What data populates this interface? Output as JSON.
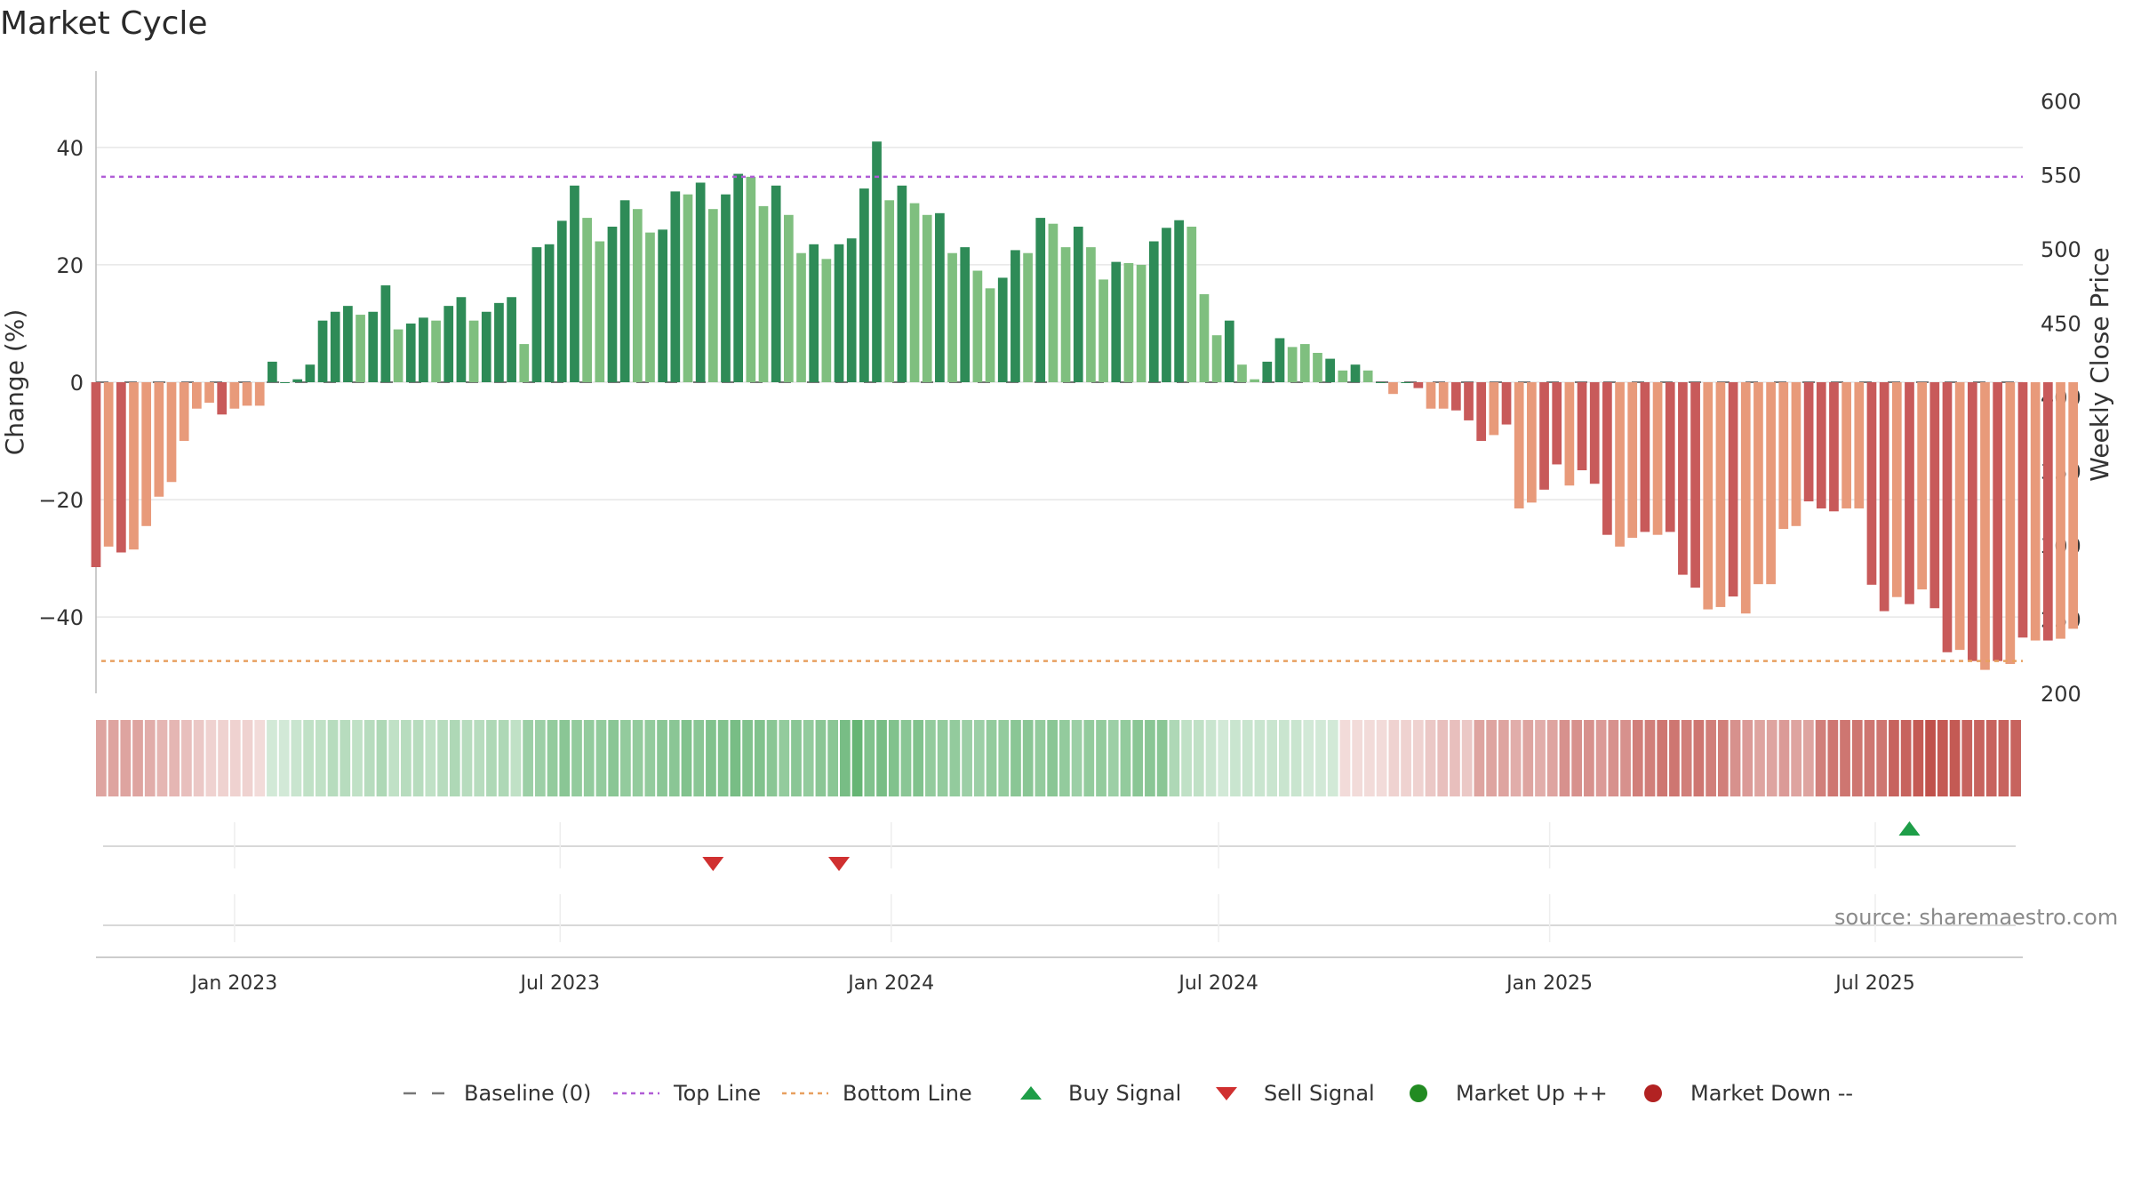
{
  "title": "Market Cycle",
  "source_text": "source: sharemaestro.com",
  "colors": {
    "up_strong": "#2e8b57",
    "up_weak": "#7fbf7f",
    "down_strong": "#c85a5a",
    "down_weak": "#e89a7a",
    "top_line": "#b05cd6",
    "bottom_line": "#e8a060",
    "buy": "#1e9e48",
    "sell": "#d03030",
    "market_up": "#228b22",
    "market_down": "#b22222",
    "grid": "#e6e6e6",
    "axis": "#bbbbbb"
  },
  "legend": [
    {
      "key": "baseline",
      "label": "Baseline (0)",
      "icon": "dash-line-icon"
    },
    {
      "key": "top",
      "label": "Top Line",
      "icon": "dotted-line-icon"
    },
    {
      "key": "bottom",
      "label": "Bottom Line",
      "icon": "dotted-line-icon"
    },
    {
      "key": "buy",
      "label": "Buy Signal",
      "icon": "triangle-up-icon"
    },
    {
      "key": "sell",
      "label": "Sell Signal",
      "icon": "triangle-down-icon"
    },
    {
      "key": "mup",
      "label": "Market Up ++",
      "icon": "dot-icon"
    },
    {
      "key": "mdown",
      "label": "Market Down --",
      "icon": "dot-icon"
    }
  ],
  "chart_data": {
    "type": "bar",
    "title": "Market Cycle",
    "ylabel": "Change (%)",
    "y2label": "Weekly Close Price",
    "ylim": [
      -53,
      53
    ],
    "y2lim": [
      200,
      620
    ],
    "yticks": [
      -40,
      -20,
      0,
      20,
      40
    ],
    "yticklabels": [
      "−40",
      "−20",
      "0",
      "20",
      "40"
    ],
    "y2ticks": [
      200,
      250,
      300,
      350,
      400,
      450,
      500,
      550,
      600
    ],
    "x_start": "2022-10-16",
    "x_end": "2025-09-21",
    "xticks": [
      "2023-01-01",
      "2023-07-01",
      "2024-01-01",
      "2024-07-01",
      "2025-01-01",
      "2025-07-01"
    ],
    "xticklabels": [
      "Jan 2023",
      "Jul 2023",
      "Jan 2024",
      "Jul 2024",
      "Jan 2025",
      "Jul 2025"
    ],
    "top_line": 35,
    "bottom_line": -47.5,
    "baseline": 0,
    "grid": true,
    "legend_position": "bottom",
    "first_week": "2022-10-16",
    "values": [
      -31.5,
      -28,
      -29,
      -28.5,
      -24.5,
      -19.5,
      -17,
      -10,
      -4.5,
      -3.5,
      -5.5,
      -4.5,
      -4,
      -4,
      3.5,
      0,
      0.5,
      3,
      10.5,
      12,
      13,
      11.5,
      12,
      16.5,
      9,
      10,
      11,
      10.5,
      13,
      14.5,
      10.5,
      12,
      13.5,
      14.5,
      6.5,
      23,
      23.5,
      27.5,
      33.5,
      28,
      24,
      26.5,
      31,
      29.5,
      25.5,
      26,
      32.5,
      32,
      34,
      29.5,
      32,
      35.5,
      35,
      30,
      33.5,
      28.5,
      22,
      23.5,
      21,
      23.5,
      24.5,
      33,
      41,
      31,
      33.5,
      30.5,
      28.5,
      28.8,
      22,
      23,
      19,
      16,
      17.8,
      22.5,
      22,
      28,
      27,
      23,
      26.5,
      23,
      17.5,
      20.5,
      20.3,
      20,
      24,
      26.3,
      27.6,
      26.5,
      15,
      8,
      10.5,
      3,
      0.5,
      3.5,
      7.5,
      6,
      6.5,
      5,
      4,
      2,
      3,
      2,
      0,
      -2,
      0,
      -1,
      -4.5,
      -4.5,
      -4.8,
      -6.5,
      -10,
      -9,
      -7.2,
      -21.5,
      -20.5,
      -18.3,
      -14,
      -17.6,
      -15,
      -17.3,
      -26,
      -28,
      -26.5,
      -25.5,
      -26,
      -25.5,
      -32.8,
      -35,
      -38.7,
      -38.3,
      -36.5,
      -39.4,
      -34.4,
      -34.4,
      -25,
      -24.5,
      -20.3,
      -21.5,
      -22,
      -21.5,
      -21.5,
      -34.5,
      -39,
      -36.6,
      -37.8,
      -35.3,
      -38.5,
      -46,
      -45.6,
      -47.5,
      -49,
      -47.5,
      -48,
      -43.5,
      -44,
      -44,
      -43.7,
      -42
    ],
    "strength": [
      1,
      0,
      1,
      0,
      0,
      0,
      0,
      0,
      0,
      0,
      1,
      0,
      0,
      0,
      1,
      1,
      1,
      1,
      1,
      1,
      1,
      0,
      1,
      1,
      0,
      1,
      1,
      0,
      1,
      1,
      0,
      1,
      1,
      1,
      0,
      1,
      1,
      1,
      1,
      0,
      0,
      1,
      1,
      0,
      0,
      1,
      1,
      0,
      1,
      0,
      1,
      1,
      0,
      0,
      1,
      0,
      0,
      1,
      0,
      1,
      1,
      1,
      1,
      0,
      1,
      0,
      0,
      1,
      0,
      1,
      0,
      0,
      1,
      1,
      0,
      1,
      0,
      0,
      1,
      0,
      0,
      1,
      0,
      0,
      1,
      1,
      1,
      0,
      0,
      0,
      1,
      0,
      0,
      1,
      1,
      0,
      0,
      0,
      1,
      0,
      1,
      0,
      1,
      0,
      1,
      1,
      0,
      0,
      1,
      1,
      1,
      0,
      1,
      0,
      0,
      1,
      1,
      0,
      1,
      1,
      1,
      0,
      0,
      1,
      0,
      1,
      1,
      1,
      0,
      0,
      1,
      0,
      0,
      0,
      0,
      0,
      1,
      1,
      1,
      0,
      0,
      1,
      1,
      0,
      1,
      0,
      1,
      1,
      0,
      1,
      0,
      1,
      0,
      1,
      0,
      1,
      0,
      0
    ],
    "band_level": [
      -0.45,
      -0.45,
      -0.45,
      -0.45,
      -0.4,
      -0.35,
      -0.35,
      -0.3,
      -0.25,
      -0.2,
      -0.2,
      -0.2,
      -0.2,
      -0.15,
      0.2,
      0.2,
      0.25,
      0.3,
      0.3,
      0.35,
      0.35,
      0.3,
      0.35,
      0.4,
      0.3,
      0.35,
      0.35,
      0.3,
      0.35,
      0.4,
      0.35,
      0.35,
      0.4,
      0.4,
      0.3,
      0.5,
      0.5,
      0.55,
      0.6,
      0.55,
      0.55,
      0.55,
      0.6,
      0.55,
      0.55,
      0.55,
      0.6,
      0.6,
      0.65,
      0.6,
      0.65,
      0.65,
      0.7,
      0.65,
      0.65,
      0.6,
      0.55,
      0.6,
      0.55,
      0.6,
      0.6,
      0.7,
      0.8,
      0.65,
      0.7,
      0.65,
      0.6,
      0.65,
      0.55,
      0.55,
      0.55,
      0.5,
      0.5,
      0.55,
      0.55,
      0.6,
      0.6,
      0.55,
      0.6,
      0.55,
      0.5,
      0.55,
      0.55,
      0.5,
      0.55,
      0.6,
      0.6,
      0.6,
      0.4,
      0.3,
      0.3,
      0.25,
      0.2,
      0.25,
      0.25,
      0.25,
      0.25,
      0.25,
      0.25,
      0.2,
      0.2,
      0.2,
      -0.15,
      -0.15,
      -0.15,
      -0.15,
      -0.2,
      -0.2,
      -0.2,
      -0.25,
      -0.3,
      -0.3,
      -0.25,
      -0.45,
      -0.45,
      -0.45,
      -0.4,
      -0.45,
      -0.4,
      -0.45,
      -0.55,
      -0.55,
      -0.55,
      -0.5,
      -0.55,
      -0.55,
      -0.65,
      -0.65,
      -0.7,
      -0.7,
      -0.65,
      -0.7,
      -0.65,
      -0.65,
      -0.55,
      -0.5,
      -0.45,
      -0.45,
      -0.5,
      -0.45,
      -0.45,
      -0.65,
      -0.7,
      -0.7,
      -0.7,
      -0.7,
      -0.7,
      -0.8,
      -0.8,
      -0.85,
      -0.9,
      -0.85,
      -0.85,
      -0.8,
      -0.8,
      -0.8,
      -0.8,
      -0.8
    ],
    "buy_signals": [
      "2025-07-20"
    ],
    "sell_signals": [
      "2023-09-24",
      "2023-12-03"
    ]
  }
}
